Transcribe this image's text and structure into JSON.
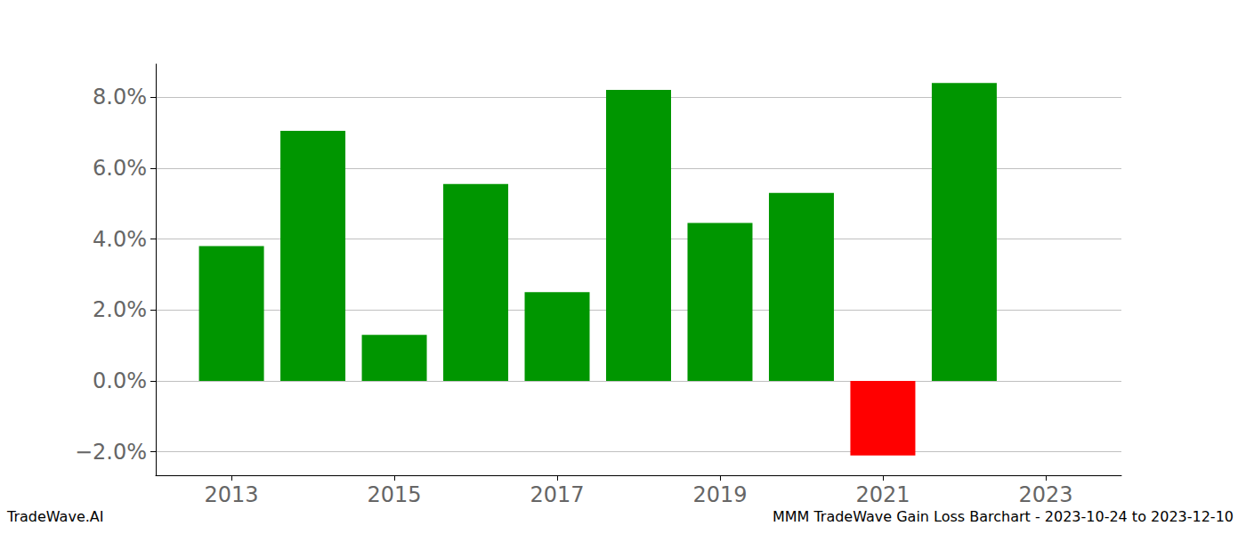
{
  "chart_data": {
    "type": "bar",
    "title": "MMM TradeWave Gain Loss Barchart - 2023-10-24 to 2023-12-10",
    "annotations": [
      "TradeWave.AI"
    ],
    "x": [
      2013,
      2014,
      2015,
      2016,
      2017,
      2018,
      2019,
      2020,
      2021,
      2022
    ],
    "values": [
      3.8,
      7.05,
      1.3,
      5.55,
      2.5,
      8.2,
      4.45,
      5.3,
      -2.1,
      8.4
    ],
    "colors": [
      "#009600",
      "#009600",
      "#009600",
      "#009600",
      "#009600",
      "#009600",
      "#009600",
      "#009600",
      "#ff0000",
      "#009600"
    ],
    "xlim": [
      2012.07,
      2023.93
    ],
    "xticks": [
      2013,
      2015,
      2017,
      2019,
      2021,
      2023
    ],
    "ylim": [
      -2.66,
      8.93
    ],
    "yticks": [
      {
        "value": -2,
        "label": "−2.0%"
      },
      {
        "value": 0,
        "label": "0.0%"
      },
      {
        "value": 2,
        "label": "2.0%"
      },
      {
        "value": 4,
        "label": "4.0%"
      },
      {
        "value": 6,
        "label": "6.0%"
      },
      {
        "value": 8,
        "label": "8.0%"
      }
    ],
    "grid": true
  }
}
